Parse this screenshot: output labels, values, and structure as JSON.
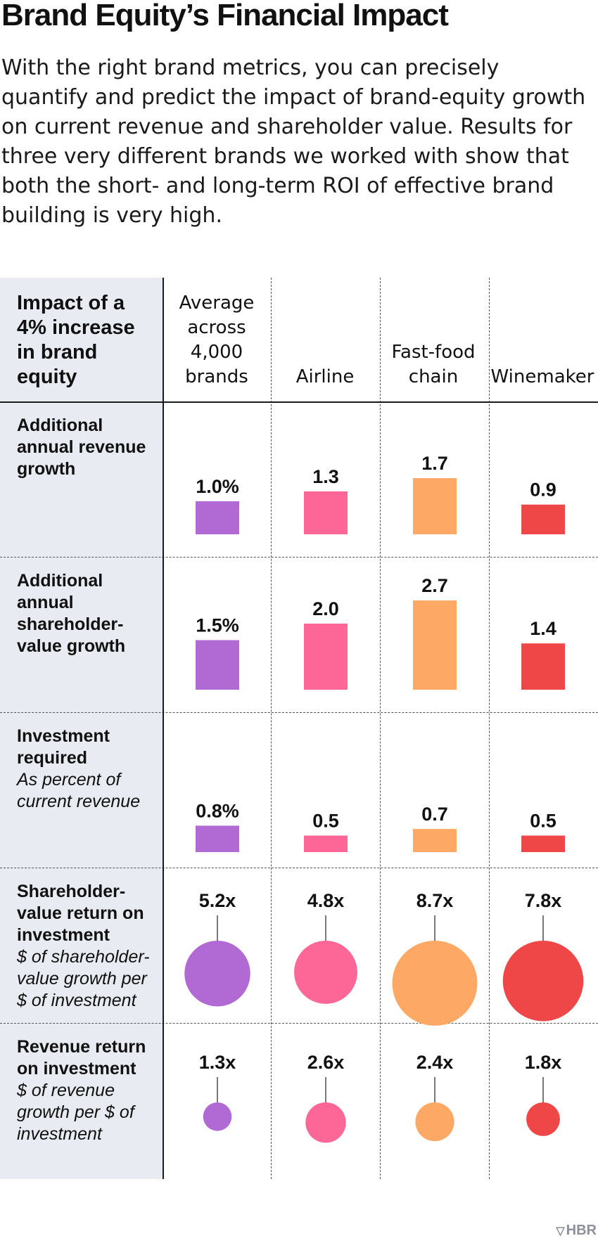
{
  "title": "Brand Equity’s Financial Impact",
  "intro": "With the right brand metrics, you can precisely quantify and predict the impact of brand-equity growth on current revenue and shareholder value. Results for three very different brands we worked with show that both the short- and long-term ROI of effective brand building is very high.",
  "corner_label": "Impact of a 4% increase in brand equity",
  "columns": [
    {
      "label": "Average across 4,000 brands",
      "color": "#b16ad4"
    },
    {
      "label": "Airline",
      "color": "#fd6797"
    },
    {
      "label": "Fast-food chain",
      "color": "#fea865"
    },
    {
      "label": "Winemaker",
      "color": "#ef4748"
    }
  ],
  "rows": [
    {
      "label": "Additional annual revenue growth",
      "sub": ""
    },
    {
      "label": "Additional annual shareholder-value growth",
      "sub": ""
    },
    {
      "label": "Investment required",
      "sub": "As percent of current revenue"
    },
    {
      "label": "Shareholder-value return on investment",
      "sub": "$ of shareholder-value growth per $ of investment"
    },
    {
      "label": "Revenue return on investment",
      "sub": "$ of revenue growth per $ of investment"
    }
  ],
  "chart_data": {
    "type": "table",
    "categories": [
      "Average across 4,000 brands",
      "Airline",
      "Fast-food chain",
      "Winemaker"
    ],
    "series": [
      {
        "name": "Additional annual revenue growth",
        "mark": "bar",
        "values": [
          1.0,
          1.3,
          1.7,
          0.9
        ],
        "labels": [
          "1.0%",
          "1.3",
          "1.7",
          "0.9"
        ]
      },
      {
        "name": "Additional annual shareholder-value growth",
        "mark": "bar",
        "values": [
          1.5,
          2.0,
          2.7,
          1.4
        ],
        "labels": [
          "1.5%",
          "2.0",
          "2.7",
          "1.4"
        ]
      },
      {
        "name": "Investment required",
        "mark": "bar",
        "values": [
          0.8,
          0.5,
          0.7,
          0.5
        ],
        "labels": [
          "0.8%",
          "0.5",
          "0.7",
          "0.5"
        ]
      },
      {
        "name": "Shareholder-value return on investment",
        "mark": "circle",
        "values": [
          5.2,
          4.8,
          8.7,
          7.8
        ],
        "labels": [
          "5.2x",
          "4.8x",
          "8.7x",
          "7.8x"
        ]
      },
      {
        "name": "Revenue return on investment",
        "mark": "circle",
        "values": [
          1.3,
          2.6,
          2.4,
          1.8
        ],
        "labels": [
          "1.3x",
          "2.6x",
          "2.4x",
          "1.8x"
        ]
      }
    ]
  },
  "footer": {
    "brand": "HBR"
  }
}
